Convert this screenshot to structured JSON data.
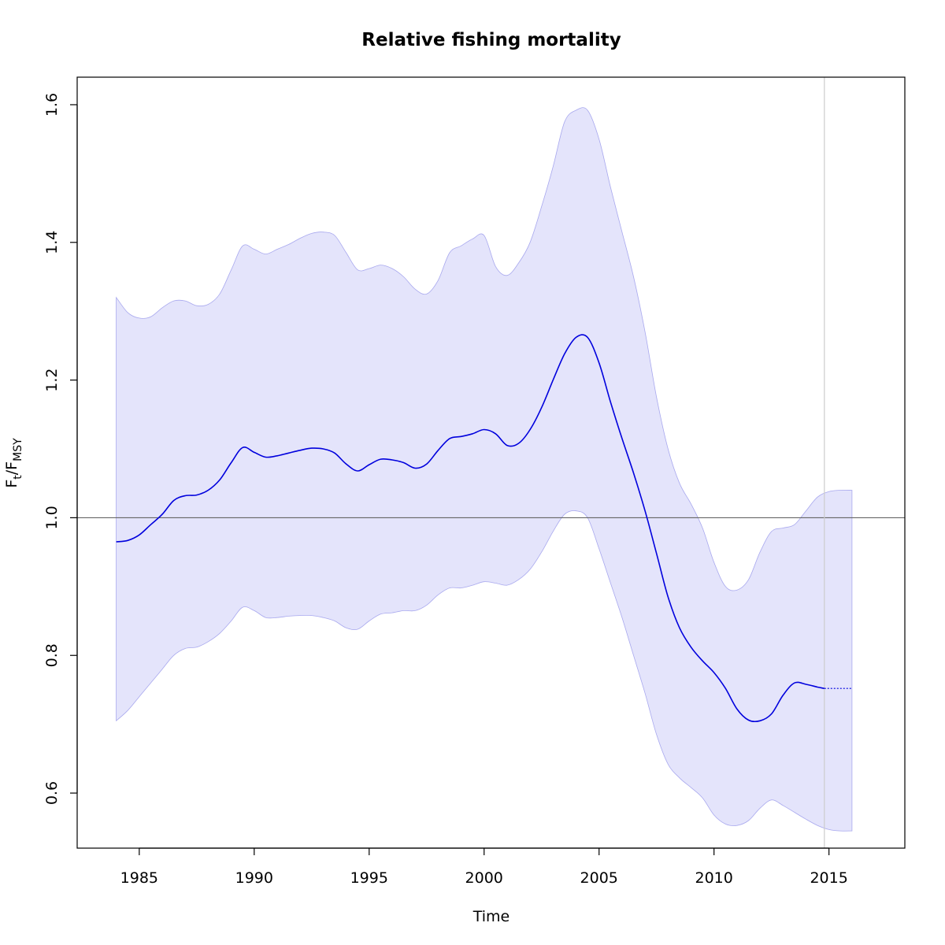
{
  "chart_data": {
    "type": "line",
    "title": "Relative fishing mortality",
    "xlabel": "Time",
    "ylabel": {
      "base": "F",
      "sub1": "t",
      "sep": "/F",
      "sub2": "MSY"
    },
    "xlim": [
      1982.3,
      2018.3
    ],
    "ylim": [
      0.52,
      1.64
    ],
    "xticks": [
      1985,
      1990,
      1995,
      2000,
      2005,
      2010,
      2015
    ],
    "yticks": [
      0.6,
      0.8,
      1.0,
      1.2,
      1.4,
      1.6
    ],
    "reference_line": {
      "y": 1.0,
      "color": "#666666"
    },
    "last_data_line": {
      "x": 2014.8,
      "color": "#cccccc"
    },
    "colors": {
      "line": "#0000dd",
      "band_fill": "#e4e4fb",
      "band_edge": "#a8a8ee"
    },
    "series": [
      {
        "role": "estimate",
        "style": "solid",
        "x": [
          1984.0,
          1984.5,
          1985.0,
          1985.5,
          1986.0,
          1986.5,
          1987.0,
          1987.5,
          1988.0,
          1988.5,
          1989.0,
          1989.5,
          1990.0,
          1990.5,
          1991.0,
          1991.5,
          1992.0,
          1992.5,
          1993.0,
          1993.5,
          1994.0,
          1994.5,
          1995.0,
          1995.5,
          1996.0,
          1996.5,
          1997.0,
          1997.5,
          1998.0,
          1998.5,
          1999.0,
          1999.5,
          2000.0,
          2000.5,
          2001.0,
          2001.5,
          2002.0,
          2002.5,
          2003.0,
          2003.5,
          2004.0,
          2004.5,
          2005.0,
          2005.5,
          2006.0,
          2006.5,
          2007.0,
          2007.5,
          2008.0,
          2008.5,
          2009.0,
          2009.5,
          2010.0,
          2010.5,
          2011.0,
          2011.5,
          2012.0,
          2012.5,
          2013.0,
          2013.5,
          2014.0,
          2014.5,
          2014.8
        ],
        "y": [
          0.965,
          0.967,
          0.975,
          0.99,
          1.005,
          1.025,
          1.032,
          1.033,
          1.04,
          1.055,
          1.08,
          1.102,
          1.095,
          1.088,
          1.09,
          1.094,
          1.098,
          1.101,
          1.1,
          1.094,
          1.078,
          1.068,
          1.077,
          1.085,
          1.084,
          1.08,
          1.072,
          1.078,
          1.098,
          1.115,
          1.118,
          1.122,
          1.128,
          1.122,
          1.105,
          1.108,
          1.128,
          1.16,
          1.2,
          1.238,
          1.262,
          1.262,
          1.225,
          1.168,
          1.115,
          1.065,
          1.01,
          0.948,
          0.885,
          0.84,
          0.812,
          0.792,
          0.775,
          0.752,
          0.722,
          0.706,
          0.705,
          0.715,
          0.742,
          0.76,
          0.758,
          0.754,
          0.752
        ]
      },
      {
        "role": "prediction",
        "style": "dotted",
        "x": [
          2014.8,
          2016.0
        ],
        "y": [
          0.752,
          0.752
        ]
      }
    ],
    "band": {
      "role": "confidence-interval",
      "x": [
        1984.0,
        1984.5,
        1985.0,
        1985.5,
        1986.0,
        1986.5,
        1987.0,
        1987.5,
        1988.0,
        1988.5,
        1989.0,
        1989.5,
        1990.0,
        1990.5,
        1991.0,
        1991.5,
        1992.0,
        1992.5,
        1993.0,
        1993.5,
        1994.0,
        1994.5,
        1995.0,
        1995.5,
        1996.0,
        1996.5,
        1997.0,
        1997.5,
        1998.0,
        1998.5,
        1999.0,
        1999.5,
        2000.0,
        2000.5,
        2001.0,
        2001.5,
        2002.0,
        2002.5,
        2003.0,
        2003.5,
        2004.0,
        2004.5,
        2005.0,
        2005.5,
        2006.0,
        2006.5,
        2007.0,
        2007.5,
        2008.0,
        2008.5,
        2009.0,
        2009.5,
        2010.0,
        2010.5,
        2011.0,
        2011.5,
        2012.0,
        2012.5,
        2013.0,
        2013.5,
        2014.0,
        2014.5,
        2015.0,
        2015.5,
        2016.0
      ],
      "upper": [
        1.32,
        1.298,
        1.29,
        1.292,
        1.305,
        1.315,
        1.315,
        1.308,
        1.31,
        1.325,
        1.36,
        1.395,
        1.39,
        1.383,
        1.39,
        1.397,
        1.406,
        1.413,
        1.415,
        1.41,
        1.385,
        1.36,
        1.362,
        1.367,
        1.362,
        1.35,
        1.332,
        1.325,
        1.345,
        1.385,
        1.395,
        1.405,
        1.41,
        1.365,
        1.352,
        1.37,
        1.4,
        1.452,
        1.51,
        1.575,
        1.592,
        1.592,
        1.55,
        1.48,
        1.415,
        1.35,
        1.27,
        1.175,
        1.1,
        1.05,
        1.02,
        0.985,
        0.935,
        0.9,
        0.895,
        0.91,
        0.95,
        0.98,
        0.985,
        0.99,
        1.01,
        1.03,
        1.038,
        1.04,
        1.04
      ],
      "lower": [
        0.705,
        0.72,
        0.74,
        0.76,
        0.78,
        0.8,
        0.81,
        0.812,
        0.82,
        0.832,
        0.85,
        0.87,
        0.865,
        0.855,
        0.855,
        0.857,
        0.858,
        0.858,
        0.855,
        0.85,
        0.84,
        0.838,
        0.85,
        0.86,
        0.862,
        0.865,
        0.865,
        0.873,
        0.888,
        0.898,
        0.898,
        0.902,
        0.907,
        0.905,
        0.902,
        0.91,
        0.925,
        0.95,
        0.98,
        1.005,
        1.01,
        1.0,
        0.955,
        0.905,
        0.855,
        0.8,
        0.745,
        0.685,
        0.642,
        0.622,
        0.608,
        0.593,
        0.568,
        0.555,
        0.553,
        0.56,
        0.578,
        0.59,
        0.582,
        0.572,
        0.562,
        0.553,
        0.547,
        0.545,
        0.545
      ]
    }
  }
}
